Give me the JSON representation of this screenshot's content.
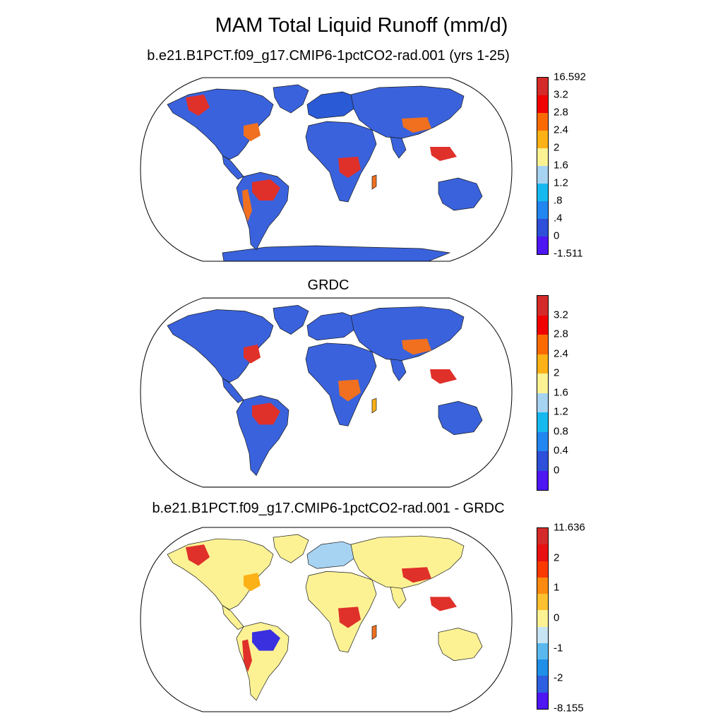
{
  "title": "MAM Total Liquid Runoff (mm/d)",
  "panels": [
    {
      "id": "model",
      "subtitle": "b.e21.B1PCT.f09_g17.CMIP6-1pctCO2-rad.001 (yrs 1-25)",
      "colorbar": {
        "colors": [
          "#d42a2a",
          "#f00000",
          "#fb6a00",
          "#fcb117",
          "#fcf294",
          "#a7d3f2",
          "#16b9ef",
          "#2186ef",
          "#2d4fd9",
          "#4d16f2"
        ],
        "labels": [
          "16.592",
          "3.2",
          "2.8",
          "2.4",
          "2",
          "1.6",
          "1.2",
          ".8",
          ".4",
          "0",
          "-1.511"
        ],
        "label_mode": "edges"
      },
      "regions": {
        "north_america": "#3a62dc",
        "central_america": "#3a62dc",
        "south_america": "#3a62dc",
        "greenland": "#3a62dc",
        "europe": "#2a5ad6",
        "africa": "#3a62dc",
        "asia": "#3a62dc",
        "india": "#3a62dc",
        "australia": "#3a62dc",
        "antarctica": "#3a62dc",
        "amazon_spot": "#e0302a",
        "congo_spot": "#e0302a",
        "se_asia_spot": "#e0302a",
        "na_east_spot": "#f07020",
        "canada_nw_spot": "#e0302a",
        "china_spot": "#f07020",
        "andes_spot": "#f07020",
        "madagascar": "#f07020"
      }
    },
    {
      "id": "obs",
      "subtitle": "GRDC",
      "colorbar": {
        "colors": [
          "#d42a2a",
          "#f00000",
          "#fb6a00",
          "#fcb117",
          "#fcf294",
          "#a7d3f2",
          "#16b9ef",
          "#2186ef",
          "#2d4fd9",
          "#4d16f2"
        ],
        "labels": [
          "3.2",
          "2.8",
          "2.4",
          "2",
          "1.6",
          "1.2",
          "0.8",
          "0.4",
          "0"
        ],
        "label_mode": "interior"
      },
      "regions": {
        "north_america": "#3a62dc",
        "central_america": "#3a62dc",
        "south_america": "#3a62dc",
        "greenland": "#3a62dc",
        "europe": "#3a62dc",
        "africa": "#3a62dc",
        "asia": "#3a62dc",
        "india": "#3a62dc",
        "australia": "#3a62dc",
        "antarctica": "none",
        "amazon_spot": "#e0302a",
        "congo_spot": "#f07020",
        "se_asia_spot": "#e0302a",
        "na_east_spot": "#e0302a",
        "canada_nw_spot": "#3a62dc",
        "china_spot": "#f07020",
        "andes_spot": "#3a62dc",
        "madagascar": "#fcb117"
      }
    },
    {
      "id": "diff",
      "subtitle": "b.e21.B1PCT.f09_g17.CMIP6-1pctCO2-rad.001 - GRDC",
      "colorbar": {
        "colors": [
          "#d42a2a",
          "#e81010",
          "#fb3a00",
          "#fc8a10",
          "#fcc030",
          "#fcf294",
          "#c6e4f2",
          "#5ab8ef",
          "#1f8fe8",
          "#2d5fe0",
          "#4d16f2"
        ],
        "labels": [
          "11.636",
          "",
          "2",
          "",
          "1",
          "",
          "0",
          "",
          "-1",
          "",
          "-2",
          "",
          "-8.155"
        ],
        "label_mode": "diff"
      },
      "regions": {
        "north_america": "#fcf294",
        "central_america": "#fcf294",
        "south_america": "#fcf294",
        "greenland": "#fcf294",
        "europe": "#a7d3f2",
        "africa": "#fcf294",
        "asia": "#fcf294",
        "india": "#fcf294",
        "australia": "#fcf294",
        "antarctica": "none",
        "amazon_spot": "#3a30e0",
        "congo_spot": "#e0302a",
        "se_asia_spot": "#e0302a",
        "na_east_spot": "#fcb117",
        "canada_nw_spot": "#e0302a",
        "china_spot": "#e0302a",
        "andes_spot": "#e0302a",
        "madagascar": "#f07020"
      }
    }
  ]
}
